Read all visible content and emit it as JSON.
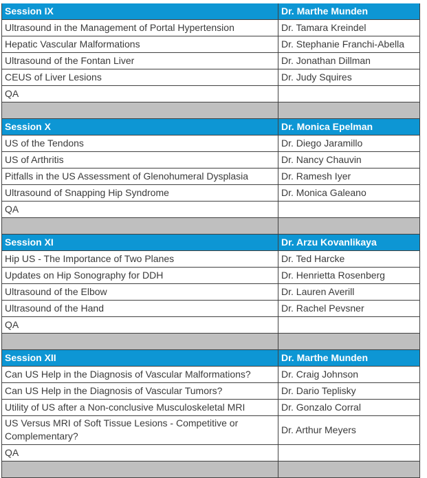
{
  "colors": {
    "session_header_bg": "#0D96D4",
    "session_header_text": "#FFFFFF",
    "body_text": "#3A3A3A",
    "border": "#404040",
    "separator_bg": "#BFBFBF",
    "page_bg": "#FFFFFF"
  },
  "schedule": {
    "columns": [
      "topic",
      "speaker"
    ],
    "sessions": [
      {
        "title": "Session IX",
        "moderator": "Dr. Marthe Munden",
        "talks": [
          {
            "topic": "Ultrasound in the Management of Portal Hypertension",
            "speaker": "Dr. Tamara Kreindel"
          },
          {
            "topic": "Hepatic Vascular Malformations",
            "speaker": "Dr. Stephanie Franchi-Abella"
          },
          {
            "topic": "Ultrasound of the Fontan Liver",
            "speaker": "Dr. Jonathan Dillman"
          },
          {
            "topic": "CEUS of Liver Lesions",
            "speaker": "Dr. Judy Squires"
          },
          {
            "topic": "QA",
            "speaker": ""
          }
        ]
      },
      {
        "title": "Session X",
        "moderator": "Dr. Monica Epelman",
        "talks": [
          {
            "topic": "US of the Tendons",
            "speaker": "Dr. Diego Jaramillo"
          },
          {
            "topic": "US of Arthritis",
            "speaker": "Dr. Nancy Chauvin"
          },
          {
            "topic": "Pitfalls in the US Assessment of Glenohumeral Dysplasia",
            "speaker": "Dr. Ramesh Iyer"
          },
          {
            "topic": "Ultrasound of Snapping Hip Syndrome",
            "speaker": "Dr. Monica Galeano"
          },
          {
            "topic": "QA",
            "speaker": ""
          }
        ]
      },
      {
        "title": "Session XI",
        "moderator": "Dr. Arzu Kovanlikaya",
        "talks": [
          {
            "topic": "Hip US - The Importance of Two Planes",
            "speaker": "Dr. Ted Harcke"
          },
          {
            "topic": "Updates on Hip Sonography for DDH",
            "speaker": "Dr. Henrietta Rosenberg"
          },
          {
            "topic": "Ultrasound of the Elbow",
            "speaker": "Dr. Lauren Averill"
          },
          {
            "topic": "Ultrasound of the Hand",
            "speaker": "Dr. Rachel Pevsner"
          },
          {
            "topic": "QA",
            "speaker": ""
          }
        ]
      },
      {
        "title": "Session XII",
        "moderator": "Dr. Marthe Munden",
        "talks": [
          {
            "topic": "Can US Help in the Diagnosis of Vascular Malformations?",
            "speaker": "Dr. Craig Johnson"
          },
          {
            "topic": "Can US Help in the Diagnosis of Vascular Tumors?",
            "speaker": "Dr. Dario Teplisky"
          },
          {
            "topic": "Utility of US after a Non-conclusive Musculoskeletal MRI",
            "speaker": "Dr. Gonzalo Corral"
          },
          {
            "topic": "US Versus MRI of Soft Tissue Lesions - Competitive or Complementary?",
            "speaker": "Dr. Arthur Meyers"
          },
          {
            "topic": "QA",
            "speaker": ""
          }
        ]
      }
    ]
  }
}
